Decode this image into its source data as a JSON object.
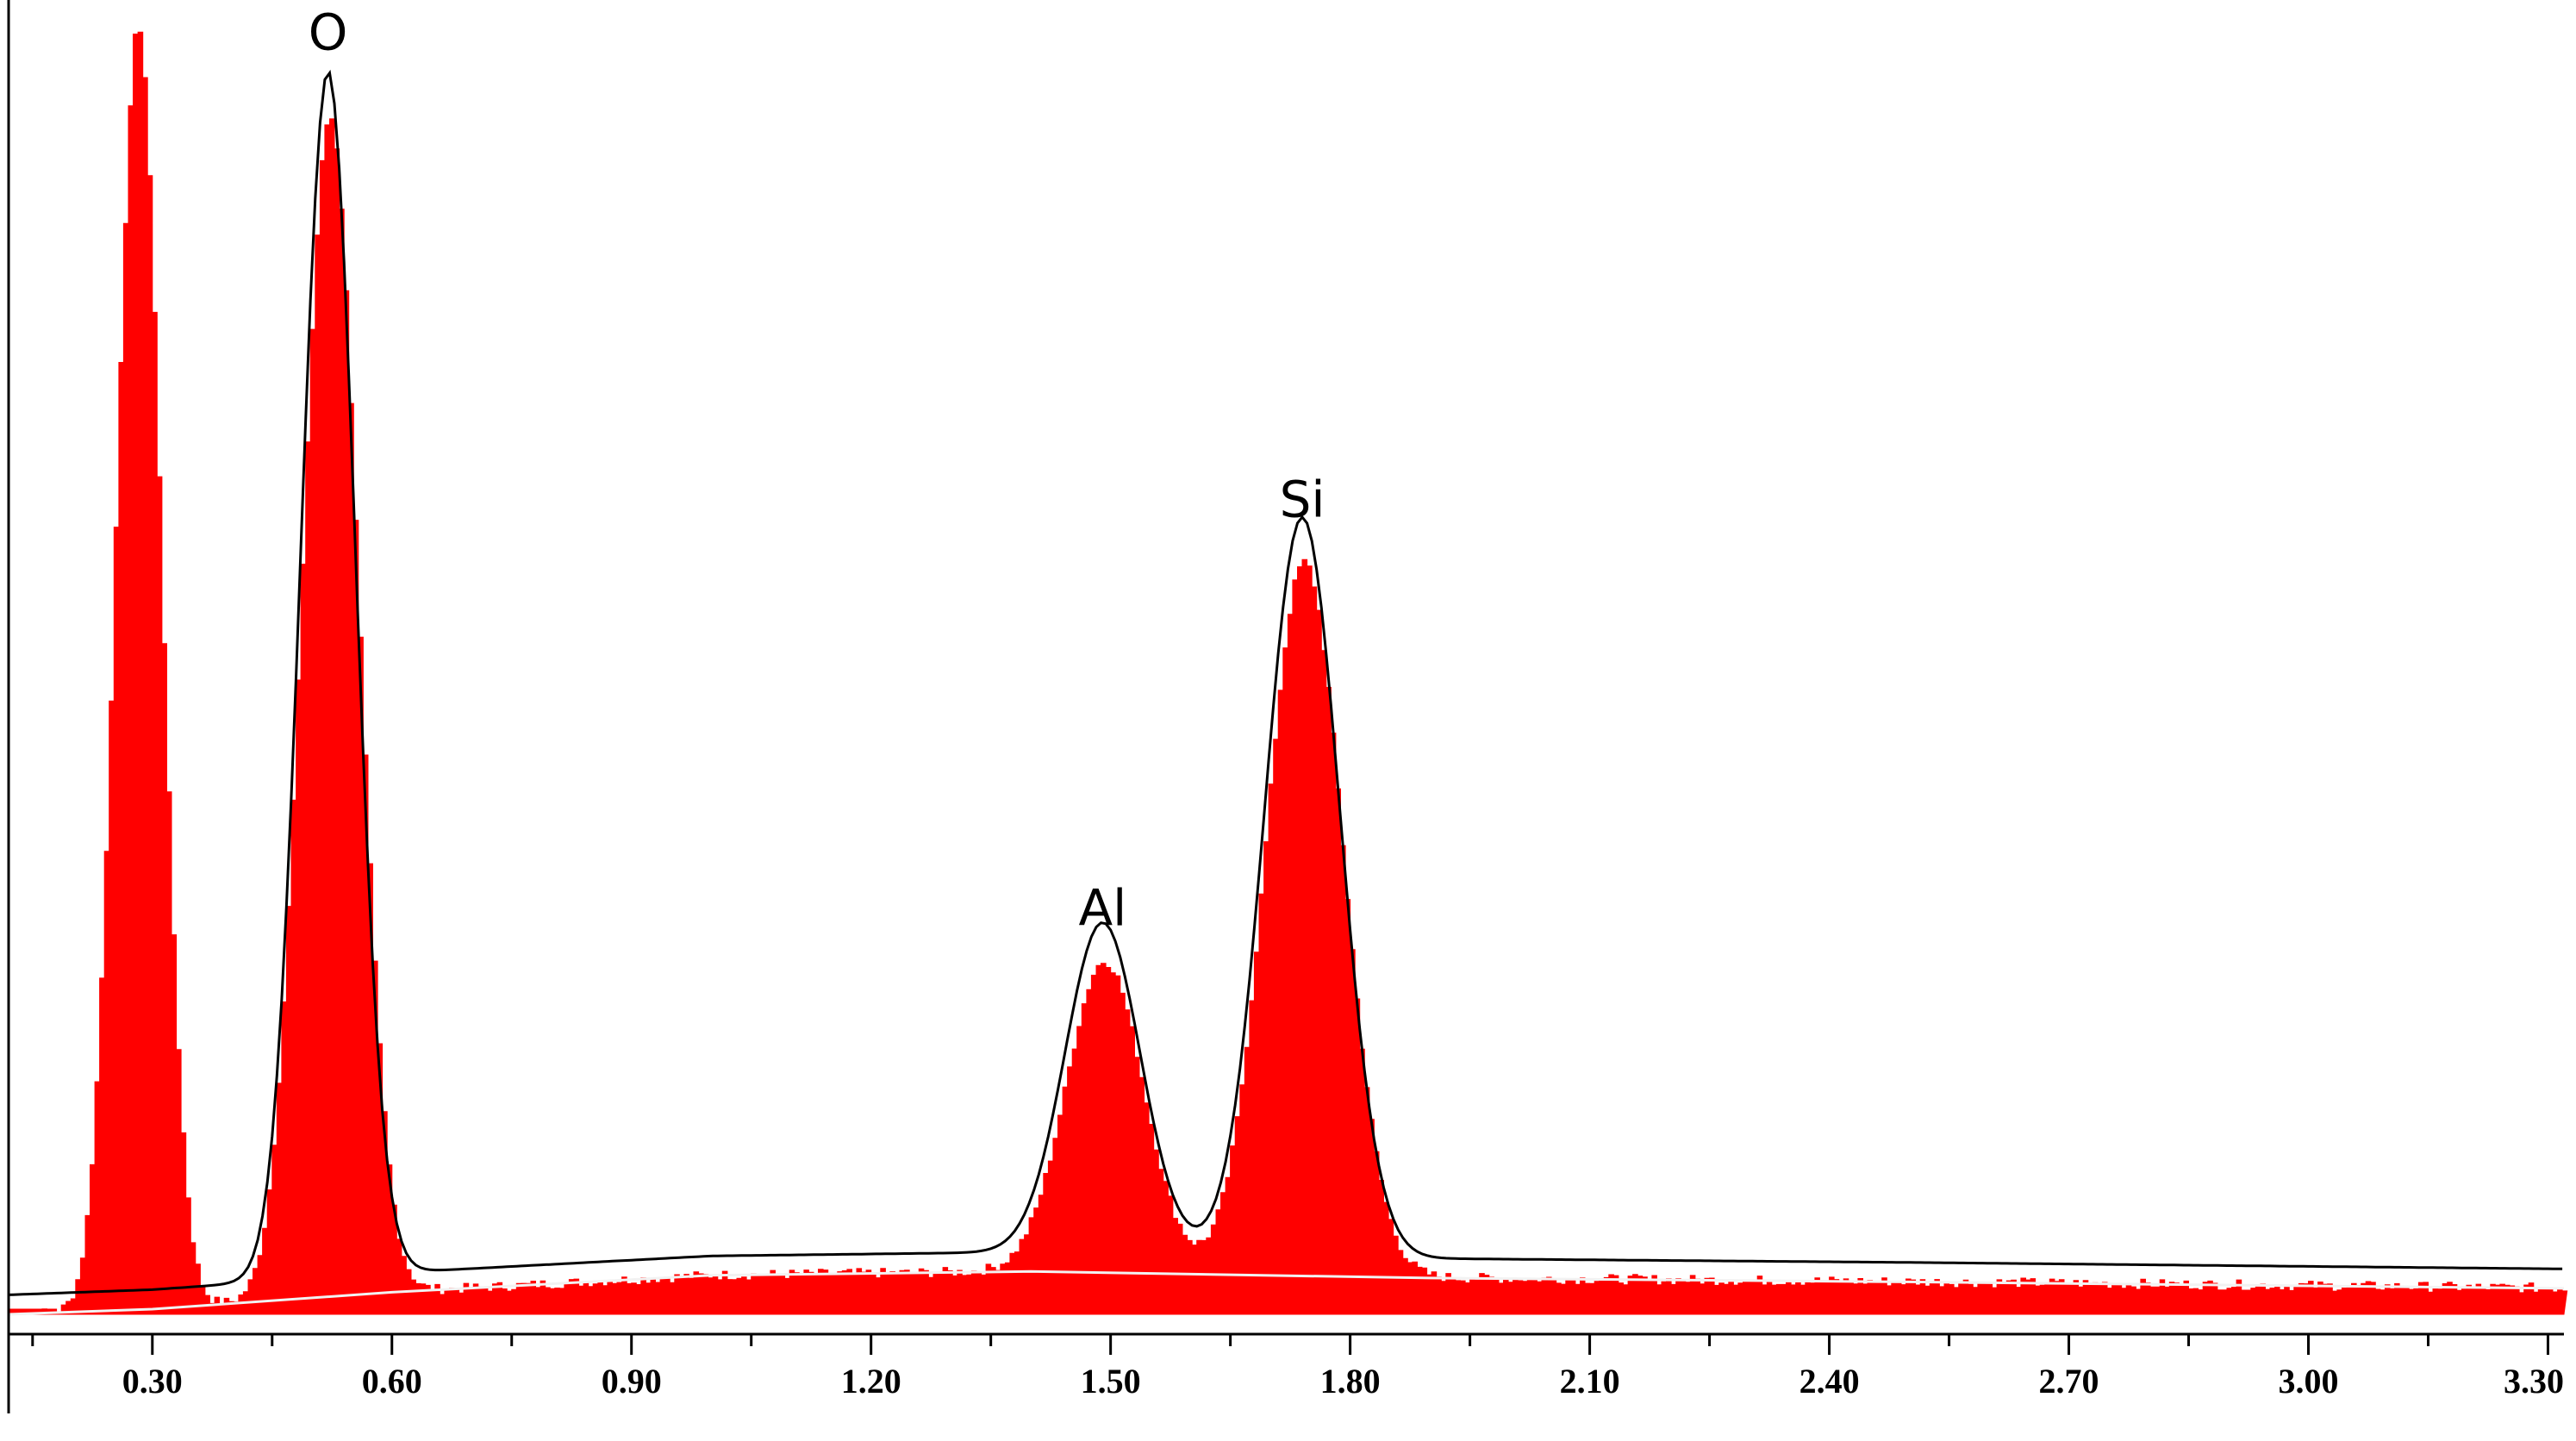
{
  "chart_data": {
    "type": "area",
    "title": "",
    "xlabel": "",
    "ylabel": "",
    "xlim": [
      0.12,
      3.32
    ],
    "ylim": [
      0,
      1.0
    ],
    "grid": false,
    "x_ticks": [
      "0.30",
      "0.60",
      "0.90",
      "1.20",
      "1.50",
      "1.80",
      "2.10",
      "2.40",
      "2.70",
      "3.00",
      "3.30"
    ],
    "x_tick_values": [
      0.3,
      0.6,
      0.9,
      1.2,
      1.5,
      1.8,
      2.1,
      2.4,
      2.7,
      3.0,
      3.3
    ],
    "colors": {
      "spectrum": "#ff0000",
      "fit": "#000000",
      "background": "#f2f2f2",
      "axis": "#000000"
    },
    "peaks": [
      {
        "center": 0.28,
        "height": 0.99,
        "width": 0.028
      },
      {
        "center": 0.52,
        "height": 0.91,
        "width": 0.035
      },
      {
        "center": 1.49,
        "height": 0.24,
        "width": 0.048
      },
      {
        "center": 1.74,
        "height": 0.55,
        "width": 0.048
      }
    ],
    "fit_peaks": [
      {
        "center": 0.52,
        "height": 0.93,
        "width": 0.034
      },
      {
        "center": 1.49,
        "height": 0.255,
        "width": 0.047
      },
      {
        "center": 1.74,
        "height": 0.57,
        "width": 0.047
      }
    ],
    "background": {
      "x": [
        0.12,
        0.3,
        0.6,
        1.0,
        1.4,
        1.9,
        2.5,
        3.32
      ],
      "y": [
        0.0,
        0.004,
        0.017,
        0.03,
        0.033,
        0.028,
        0.025,
        0.02
      ]
    },
    "annotations": [
      {
        "text": "O",
        "x": 0.52,
        "y": 0.975
      },
      {
        "text": "Al",
        "x": 1.49,
        "y": 0.3
      },
      {
        "text": "Si",
        "x": 1.74,
        "y": 0.615
      }
    ]
  }
}
